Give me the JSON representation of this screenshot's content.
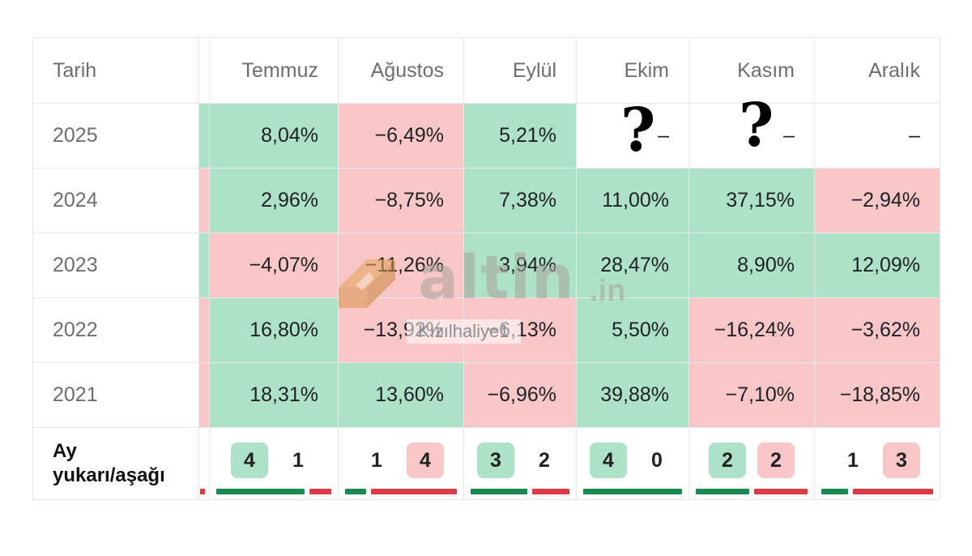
{
  "header": {
    "date_label": "Tarih",
    "months": [
      "Temmuz",
      "Ağustos",
      "Eylül",
      "Ekim",
      "Kasım",
      "Aralık"
    ]
  },
  "rows": [
    {
      "year": "2025",
      "strip": "up",
      "cells": [
        {
          "v": "8,04%",
          "s": "up"
        },
        {
          "v": "−6,49%",
          "s": "down"
        },
        {
          "v": "5,21%",
          "s": "up"
        },
        {
          "v": "–",
          "s": "empty"
        },
        {
          "v": "–",
          "s": "empty"
        },
        {
          "v": "–",
          "s": "empty"
        }
      ]
    },
    {
      "year": "2024",
      "strip": "down",
      "cells": [
        {
          "v": "2,96%",
          "s": "up"
        },
        {
          "v": "−8,75%",
          "s": "down"
        },
        {
          "v": "7,38%",
          "s": "up"
        },
        {
          "v": "11,00%",
          "s": "up"
        },
        {
          "v": "37,15%",
          "s": "up"
        },
        {
          "v": "−2,94%",
          "s": "down"
        }
      ]
    },
    {
      "year": "2023",
      "strip": "up",
      "cells": [
        {
          "v": "−4,07%",
          "s": "down"
        },
        {
          "v": "−11,26%",
          "s": "down"
        },
        {
          "v": "3,94%",
          "s": "up"
        },
        {
          "v": "28,47%",
          "s": "up"
        },
        {
          "v": "8,90%",
          "s": "up"
        },
        {
          "v": "12,09%",
          "s": "up"
        }
      ]
    },
    {
      "year": "2022",
      "strip": "down",
      "cells": [
        {
          "v": "16,80%",
          "s": "up"
        },
        {
          "v": "−13,92%",
          "s": "down"
        },
        {
          "v": "−6,13%",
          "s": "down"
        },
        {
          "v": "5,50%",
          "s": "up"
        },
        {
          "v": "−16,24%",
          "s": "down"
        },
        {
          "v": "−3,62%",
          "s": "down"
        }
      ]
    },
    {
      "year": "2021",
      "strip": "down",
      "cells": [
        {
          "v": "18,31%",
          "s": "up"
        },
        {
          "v": "13,60%",
          "s": "up"
        },
        {
          "v": "−6,96%",
          "s": "down"
        },
        {
          "v": "39,88%",
          "s": "up"
        },
        {
          "v": "−7,10%",
          "s": "down"
        },
        {
          "v": "−18,85%",
          "s": "down"
        }
      ]
    }
  ],
  "summary": {
    "label_line1": "Ay",
    "label_line2": "yukarı/aşağı",
    "months": [
      {
        "up": "4",
        "down": "1",
        "highlight": "up"
      },
      {
        "up": "1",
        "down": "4",
        "highlight": "down"
      },
      {
        "up": "3",
        "down": "2",
        "highlight": "up"
      },
      {
        "up": "4",
        "down": "0",
        "highlight": "up"
      },
      {
        "up": "2",
        "down": "2",
        "highlight": "both"
      },
      {
        "up": "1",
        "down": "3",
        "highlight": "down"
      }
    ]
  },
  "annotations": {
    "question_mark": "?"
  },
  "watermark": {
    "brand": "altin",
    "domain": ".in",
    "badge": "Kızılhaliye1"
  },
  "colors": {
    "up_bg": "#ade2c9",
    "down_bg": "#f9c7c8",
    "up_bar": "#1a8a52",
    "down_bar": "#dc3b45"
  }
}
